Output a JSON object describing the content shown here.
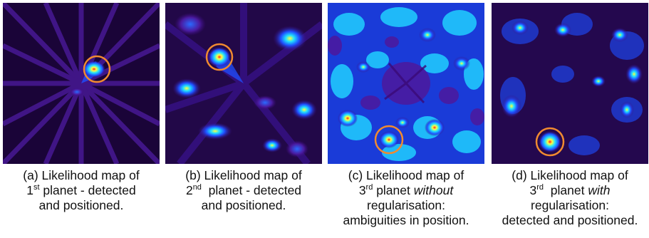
{
  "colors": {
    "background": "#000000",
    "low": "#3a0a78",
    "mid": "#1f4fff",
    "high": "#20e0ff",
    "peak": "#ffff40",
    "center": "#ff2020",
    "circle": "#f08a30"
  },
  "panels": [
    {
      "id": "a",
      "caption": {
        "line1": "(a) Likelihood map of",
        "ordinal_num": "1",
        "ordinal_sup": "st",
        "line2_rest": " planet - detected",
        "line3": "and positioned.",
        "line4": ""
      }
    },
    {
      "id": "b",
      "caption": {
        "line1": "(b) Likelihood map of",
        "ordinal_num": "2",
        "ordinal_sup": "nd",
        "line2_rest": "  planet - detected",
        "line3": "and positioned.",
        "line4": ""
      }
    },
    {
      "id": "c",
      "caption": {
        "line1": "(c) Likelihood map of",
        "ordinal_num": "3",
        "ordinal_sup": "rd",
        "line2_rest": " planet ",
        "line2_em": "without",
        "line3": "regularisation:",
        "line4": "ambiguities in position."
      }
    },
    {
      "id": "d",
      "caption": {
        "line1": "(d) Likelihood map of",
        "ordinal_num": "3",
        "ordinal_sup": "rd",
        "line2_rest": "  planet ",
        "line2_em": "with",
        "line3": "regularisation:",
        "line4": "detected and positioned."
      }
    }
  ]
}
